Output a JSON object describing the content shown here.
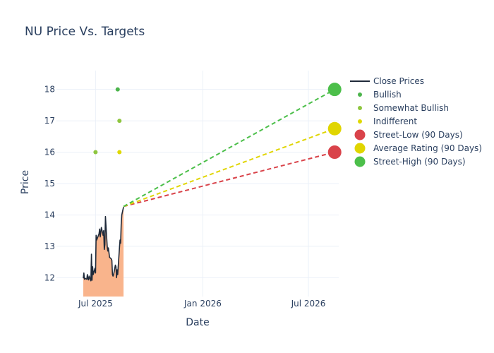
{
  "chart_data": {
    "type": "line",
    "title": "NU Price Vs. Targets",
    "xlabel": "Date",
    "ylabel": "Price",
    "x_ticks": [
      {
        "date": "2025-07-01",
        "label": "Jul 2025"
      },
      {
        "date": "2026-01-01",
        "label": "Jan 2026"
      },
      {
        "date": "2026-07-01",
        "label": "Jul 2026"
      }
    ],
    "y_ticks": [
      12,
      13,
      14,
      15,
      16,
      17,
      18
    ],
    "xlim": [
      "2025-04-25",
      "2026-08-22"
    ],
    "ylim": [
      11.4,
      18.6
    ],
    "grid": true,
    "legend_position": "right",
    "close_prices": {
      "name": "Close Prices",
      "color": "#1f2a3a",
      "fill_color": "#f9b48c",
      "points": [
        [
          "2025-06-10",
          11.98
        ],
        [
          "2025-06-11",
          12.15
        ],
        [
          "2025-06-12",
          11.95
        ],
        [
          "2025-06-13",
          11.98
        ],
        [
          "2025-06-16",
          11.95
        ],
        [
          "2025-06-17",
          12.1
        ],
        [
          "2025-06-18",
          11.97
        ],
        [
          "2025-06-19",
          11.93
        ],
        [
          "2025-06-20",
          12.05
        ],
        [
          "2025-06-23",
          11.9
        ],
        [
          "2025-06-24",
          12.75
        ],
        [
          "2025-06-25",
          11.92
        ],
        [
          "2025-06-26",
          12.35
        ],
        [
          "2025-06-27",
          12.1
        ],
        [
          "2025-06-30",
          12.3
        ],
        [
          "2025-07-01",
          12.15
        ],
        [
          "2025-07-02",
          13.35
        ],
        [
          "2025-07-03",
          13.2
        ],
        [
          "2025-07-07",
          13.4
        ],
        [
          "2025-07-08",
          13.55
        ],
        [
          "2025-07-09",
          13.3
        ],
        [
          "2025-07-10",
          13.45
        ],
        [
          "2025-07-11",
          13.6
        ],
        [
          "2025-07-14",
          13.35
        ],
        [
          "2025-07-15",
          13.5
        ],
        [
          "2025-07-16",
          12.9
        ],
        [
          "2025-07-17",
          13.05
        ],
        [
          "2025-07-18",
          13.95
        ],
        [
          "2025-07-21",
          13.0
        ],
        [
          "2025-07-22",
          12.85
        ],
        [
          "2025-07-23",
          12.95
        ],
        [
          "2025-07-24",
          12.8
        ],
        [
          "2025-07-25",
          12.65
        ],
        [
          "2025-07-28",
          12.6
        ],
        [
          "2025-07-29",
          12.55
        ],
        [
          "2025-07-30",
          12.1
        ],
        [
          "2025-07-31",
          12.05
        ],
        [
          "2025-08-01",
          12.1
        ],
        [
          "2025-08-04",
          12.4
        ],
        [
          "2025-08-05",
          12.35
        ],
        [
          "2025-08-06",
          12.0
        ],
        [
          "2025-08-07",
          12.25
        ],
        [
          "2025-08-08",
          12.1
        ],
        [
          "2025-08-11",
          12.95
        ],
        [
          "2025-08-12",
          13.2
        ],
        [
          "2025-08-13",
          13.1
        ],
        [
          "2025-08-14",
          13.7
        ],
        [
          "2025-08-15",
          14.0
        ],
        [
          "2025-08-18",
          14.25
        ]
      ]
    },
    "analyst_ratings": [
      {
        "name": "Bullish",
        "color": "#4bb44b",
        "points": [
          [
            "2025-08-08",
            18
          ]
        ]
      },
      {
        "name": "Somewhat Bullish",
        "color": "#8ec63f",
        "points": [
          [
            "2025-07-01",
            16
          ],
          [
            "2025-08-11",
            17
          ]
        ]
      },
      {
        "name": "Indifferent",
        "color": "#dfd800",
        "points": [
          [
            "2025-08-11",
            16
          ]
        ]
      }
    ],
    "targets": [
      {
        "name": "Street-Low (90 Days)",
        "color": "#d9434a",
        "start": [
          "2025-08-18",
          14.27
        ],
        "end": [
          "2026-08-15",
          16.0
        ]
      },
      {
        "name": "Average Rating (90 Days)",
        "color": "#e0d500",
        "start": [
          "2025-08-18",
          14.27
        ],
        "end": [
          "2026-08-15",
          16.75
        ]
      },
      {
        "name": "Street-High (90 Days)",
        "color": "#4cbf4a",
        "start": [
          "2025-08-18",
          14.27
        ],
        "end": [
          "2026-08-15",
          18.0
        ]
      }
    ]
  }
}
